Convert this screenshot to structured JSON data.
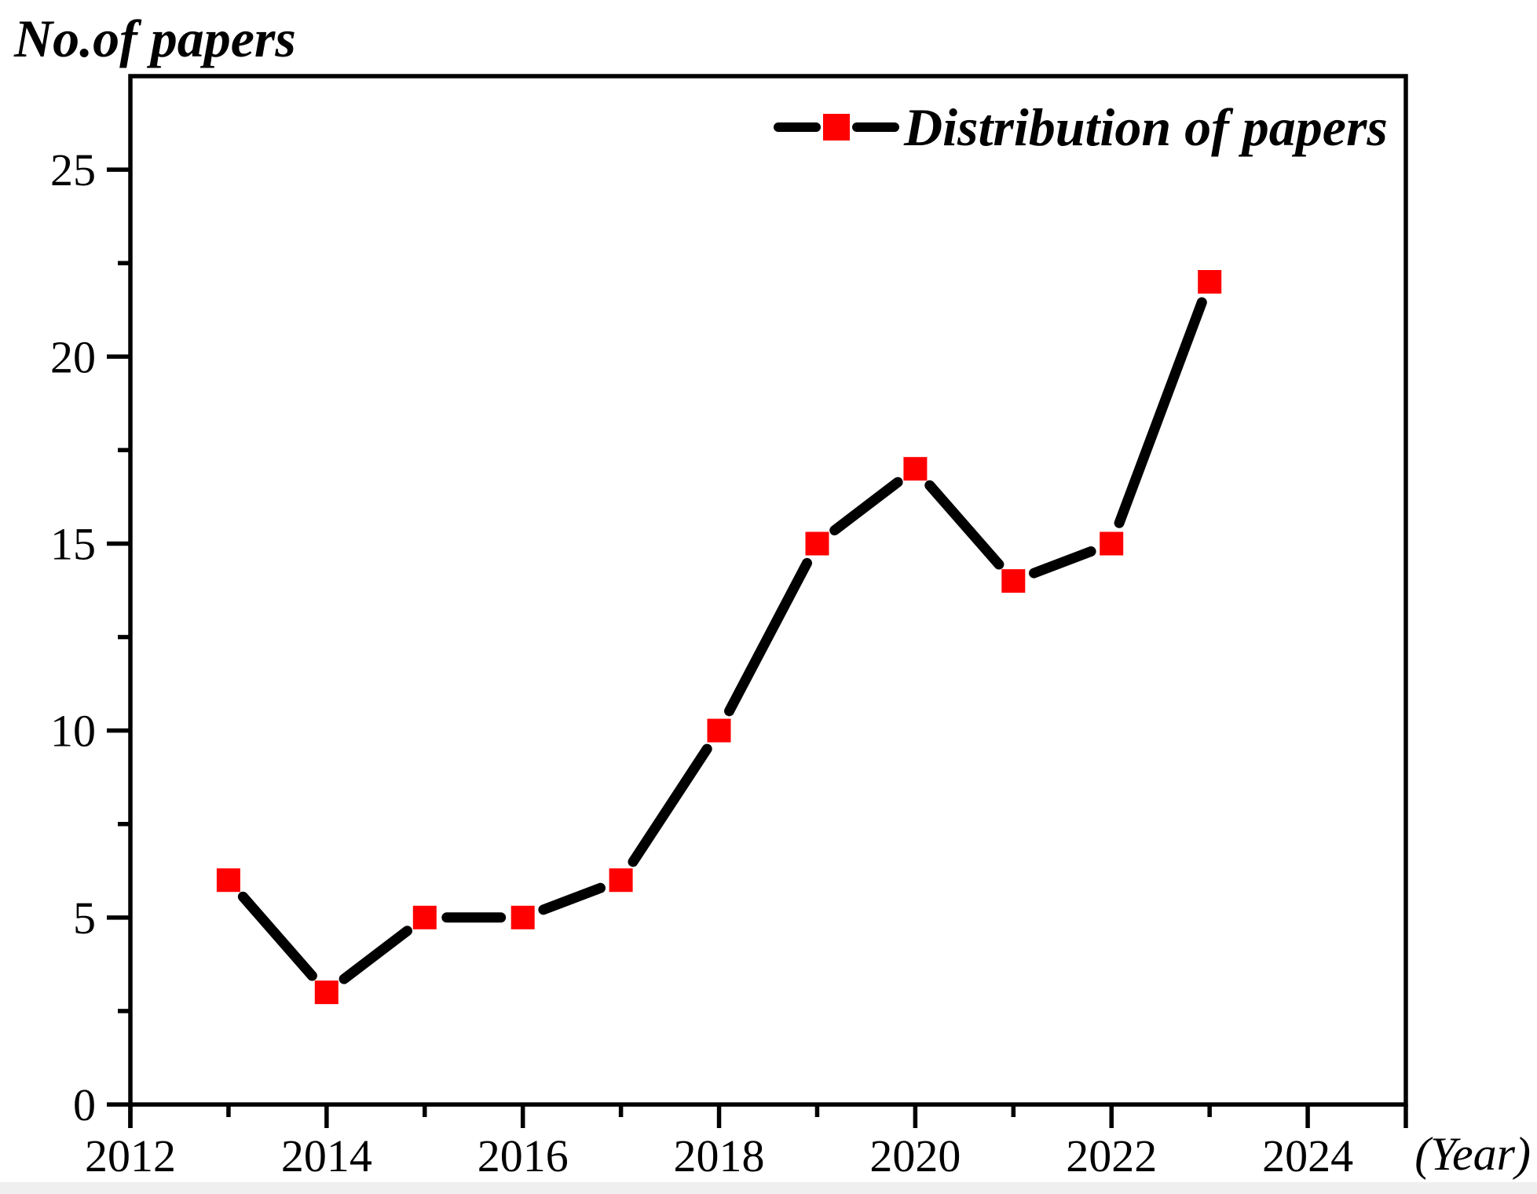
{
  "ui": {
    "y_axis_title": "No.of papers",
    "x_unit_label": "(Year)",
    "legend_label": "Distribution of papers"
  },
  "colors": {
    "axis": "#000000",
    "line": "#000000",
    "marker": "#fe0000",
    "background": "#ffffff",
    "bottom_strip": "#efefef"
  },
  "chart_data": {
    "type": "line",
    "title": "",
    "ylabel": "No.of papers",
    "xlabel": "(Year)",
    "legend": [
      "Distribution of papers"
    ],
    "legend_position": "top-right",
    "grid": false,
    "marker": "square",
    "line_color": "#000000",
    "marker_color": "#fe0000",
    "x": [
      2013,
      2014,
      2015,
      2016,
      2017,
      2018,
      2019,
      2020,
      2021,
      2022,
      2023
    ],
    "values": [
      6,
      3,
      5,
      5,
      6,
      10,
      15,
      17,
      14,
      15,
      22
    ],
    "xlim": [
      2012,
      2025
    ],
    "ylim": [
      0,
      27.5
    ],
    "x_major_ticks": [
      2012,
      2014,
      2016,
      2018,
      2020,
      2022,
      2024
    ],
    "x_minor_ticks": [
      2013,
      2015,
      2017,
      2019,
      2021,
      2023
    ],
    "y_major_ticks": [
      0,
      5,
      10,
      15,
      20,
      25
    ],
    "y_minor_ticks": [
      2.5,
      7.5,
      12.5,
      17.5,
      22.5
    ]
  }
}
